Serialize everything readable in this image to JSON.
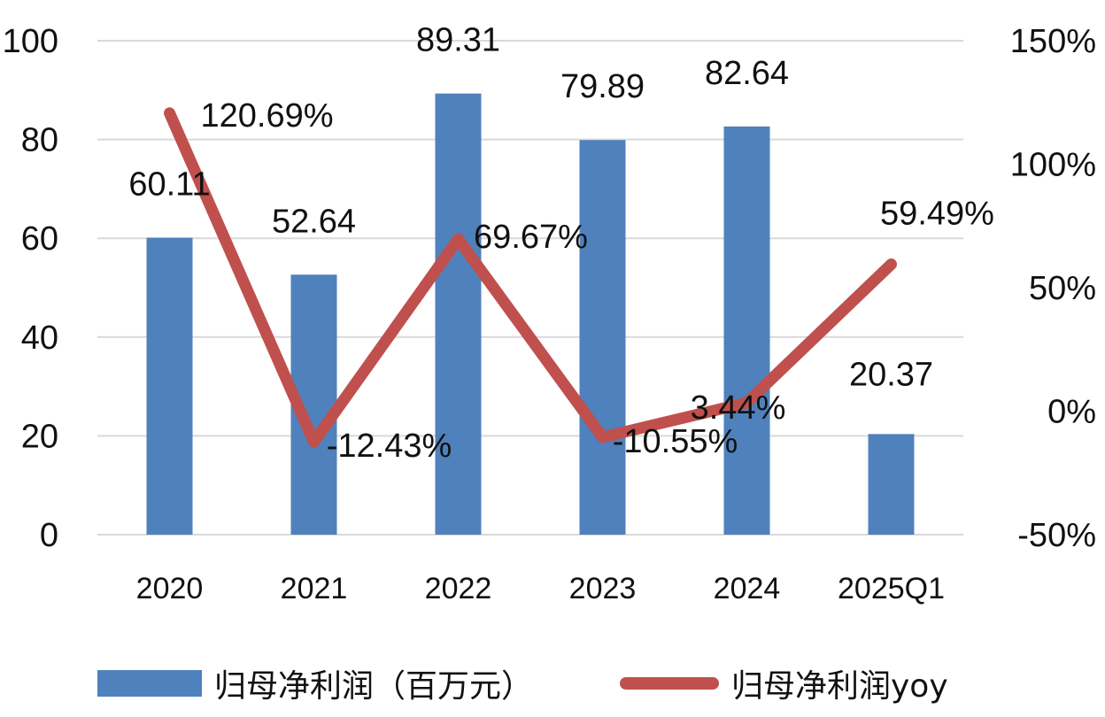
{
  "chart_data": {
    "type": "bar",
    "categories": [
      "2020",
      "2021",
      "2022",
      "2023",
      "2024",
      "2025Q1"
    ],
    "series": [
      {
        "name": "归母净利润（百万元）",
        "type": "bar",
        "axis": "left",
        "color": "#4f81bd",
        "values": [
          60.11,
          52.64,
          89.31,
          79.89,
          82.64,
          20.37
        ],
        "labels": [
          "60.11",
          "52.64",
          "89.31",
          "79.89",
          "82.64",
          "20.37"
        ]
      },
      {
        "name": "归母净利润yoy",
        "type": "line",
        "axis": "right",
        "color": "#c0504d",
        "values": [
          120.69,
          -12.43,
          69.67,
          -10.55,
          3.44,
          59.49
        ],
        "labels": [
          "120.69%",
          "-12.43%",
          "69.67%",
          "-10.55%",
          "3.44%",
          "59.49%"
        ]
      }
    ],
    "left_axis": {
      "ylim": [
        0,
        100
      ],
      "ticks": [
        "0",
        "20",
        "40",
        "60",
        "80",
        "100"
      ]
    },
    "right_axis": {
      "ylim": [
        -50,
        150
      ],
      "ticks": [
        "-50%",
        "0%",
        "50%",
        "100%",
        "150%"
      ]
    },
    "grid": true,
    "legend_position": "bottom"
  }
}
